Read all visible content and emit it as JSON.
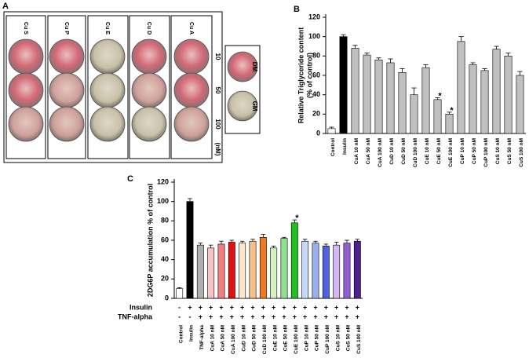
{
  "panel_a": {
    "label": "A",
    "columns": [
      "Cu S",
      "Cu P",
      "Cu E",
      "Cu D",
      "Cu A"
    ],
    "rows": [
      "10",
      "50",
      "100"
    ],
    "unit": "(nM)",
    "controls": [
      "DM",
      "GM"
    ]
  },
  "chart_data": [
    {
      "type": "bar",
      "label": "B",
      "ylabel": [
        "Relative Triglyceride content",
        "(% of control)"
      ],
      "categories": [
        "Control",
        "Insulin",
        "CuA 10 nM",
        "CuA 50 nM",
        "CuA 100 nM",
        "CuD 10 nM",
        "CuD 50 nM",
        "CuD 100 nM",
        "CuE 10 nM",
        "CuE 50 nM",
        "CuE 100 nM",
        "CuP 10 nM",
        "CuP 50 nM",
        "CuP 100 nM",
        "CuS 10 nM",
        "CuS 50 nM",
        "CuS 100 nM"
      ],
      "values": [
        5,
        100,
        88,
        81,
        76,
        73,
        63,
        40,
        68,
        35,
        20,
        95,
        71,
        65,
        87,
        80,
        60
      ],
      "errors": [
        1.5,
        2,
        3,
        2,
        2,
        4,
        4,
        7,
        3,
        2,
        2,
        5,
        2,
        2,
        3,
        3,
        4
      ],
      "colors": [
        "#ffffff",
        "#000000",
        "#c0c0c0",
        "#c0c0c0",
        "#c0c0c0",
        "#c0c0c0",
        "#c0c0c0",
        "#c0c0c0",
        "#c0c0c0",
        "#c0c0c0",
        "#c0c0c0",
        "#c0c0c0",
        "#c0c0c0",
        "#c0c0c0",
        "#c0c0c0",
        "#c0c0c0",
        "#c0c0c0"
      ],
      "annotations": [
        {
          "text": "*",
          "at": "CuE 50 nM"
        },
        {
          "text": "*",
          "at": "CuE 100 nM"
        }
      ],
      "ylim": [
        0,
        120
      ],
      "yticks": [
        0,
        20,
        40,
        60,
        80,
        100,
        120
      ]
    },
    {
      "type": "bar",
      "label": "C",
      "ylabel": [
        "2DG6P accumulation % of control"
      ],
      "categories": [
        "Control",
        "Insulin",
        "TNF-alpha",
        "CuA 10 nM",
        "CuA 50 nM",
        "CuA 100 nM",
        "CuD 10 nM",
        "CuD 50 nM",
        "CuD 100 nM",
        "CuE 10 nM",
        "CuE 50 nM",
        "CuE 100 nM",
        "CuP 10 nM",
        "CuP 50 nM",
        "CuP 100 nM",
        "CuS 10 nM",
        "CuS 50 nM",
        "CuS 100 nM"
      ],
      "values": [
        10,
        100,
        55,
        52,
        56,
        58,
        57,
        59,
        63,
        52,
        62,
        78,
        59,
        57,
        54,
        55,
        57,
        59
      ],
      "errors": [
        1,
        3,
        2,
        3,
        3,
        2,
        2,
        2,
        3,
        2,
        1,
        3,
        2,
        2,
        2,
        3,
        3,
        2
      ],
      "colors": [
        "#ffffff",
        "#000000",
        "#b0b0b0",
        "#f6c4c4",
        "#f08080",
        "#e01010",
        "#fde6cc",
        "#f8c088",
        "#f07a20",
        "#d4f2c4",
        "#90e090",
        "#20c020",
        "#c8d8f8",
        "#98b0f0",
        "#5060e0",
        "#d4b8f2",
        "#9060d0",
        "#502090"
      ],
      "annotations": [
        {
          "text": "*",
          "at": "CuE 100 nM"
        }
      ],
      "conditions": [
        {
          "name": "Insulin",
          "signs": [
            "-",
            "+",
            "+",
            "+",
            "+",
            "+",
            "+",
            "+",
            "+",
            "+",
            "+",
            "+",
            "+",
            "+",
            "+",
            "+",
            "+",
            "+"
          ]
        },
        {
          "name": "TNF-alpha",
          "signs": [
            "-",
            "-",
            "+",
            "+",
            "+",
            "+",
            "+",
            "+",
            "+",
            "+",
            "+",
            "+",
            "+",
            "+",
            "+",
            "+",
            "+",
            "+"
          ]
        }
      ],
      "ylim": [
        0,
        120
      ],
      "yticks": [
        0,
        20,
        40,
        60,
        80,
        100,
        120
      ]
    }
  ]
}
